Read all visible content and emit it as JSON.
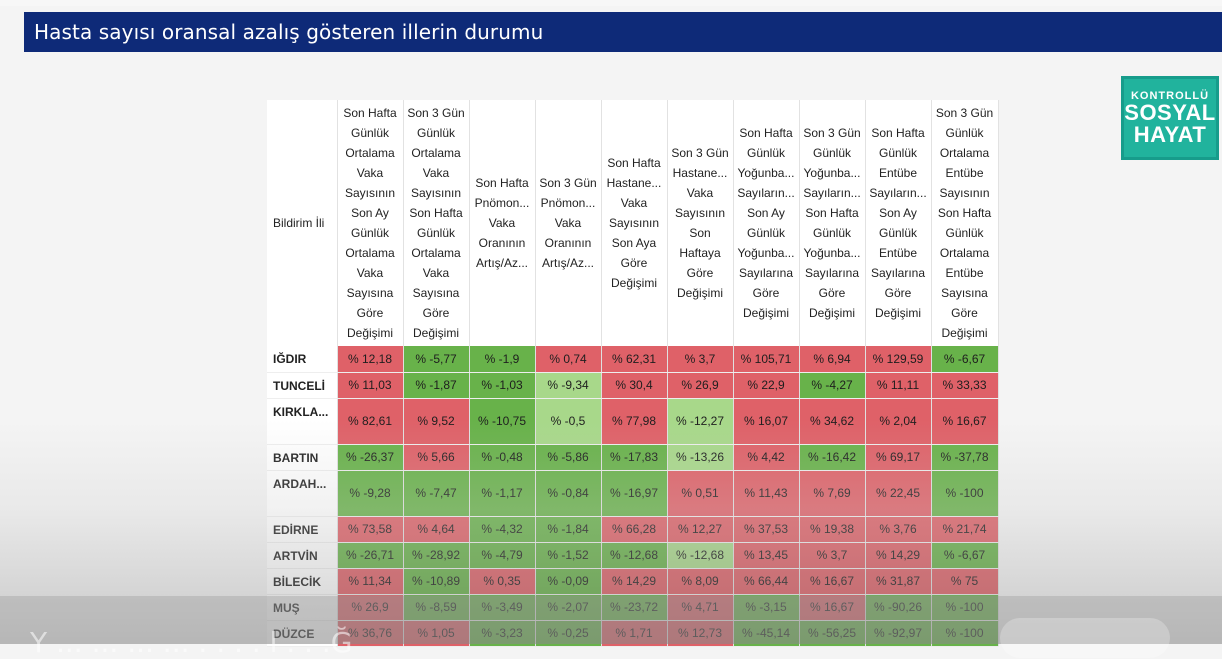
{
  "title": "Hasta sayısı oransal azalış gösteren illerin durumu",
  "logo": {
    "top": "KONTROLLÜ",
    "mid": "SOSYAL",
    "bottom": "HAYAT"
  },
  "colors": {
    "title_bg": "#0e2a78",
    "red": "#df6168",
    "green": "#68b24a",
    "light_green": "#a8d88a",
    "logo": "#21b39d"
  },
  "ghost_text": "Y ... ... ... ... . . . . l . . .Ğ",
  "table": {
    "corner_header": "Bildirim İli",
    "headers": [
      [
        "Son Hafta",
        "Günlük",
        "Ortalama",
        "Vaka",
        "Sayısının",
        "Son Ay",
        "Günlük",
        "Ortalama",
        "Vaka",
        "Sayısına",
        "Göre",
        "Değişimi"
      ],
      [
        "Son 3 Gün",
        "Günlük",
        "Ortalama",
        "Vaka",
        "Sayısının",
        "Son Hafta",
        "Günlük",
        "Ortalama",
        "Vaka",
        "Sayısına",
        "Göre",
        "Değişimi"
      ],
      [
        "Son Hafta",
        "Pnömon...",
        "Vaka",
        "Oranının",
        "Artış/Az..."
      ],
      [
        "Son 3 Gün",
        "Pnömon...",
        "Vaka",
        "Oranının",
        "Artış/Az..."
      ],
      [
        "Son Hafta",
        "Hastane...",
        "Vaka",
        "Sayısının",
        "Son Aya",
        "Göre",
        "Değişimi"
      ],
      [
        "Son 3 Gün",
        "Hastane...",
        "Vaka",
        "Sayısının",
        "Son",
        "Haftaya",
        "Göre",
        "Değişimi"
      ],
      [
        "Son Hafta",
        "Günlük",
        "Yoğunba...",
        "Sayıların...",
        "Son Ay",
        "Günlük",
        "Yoğunba...",
        "Sayılarına",
        "Göre",
        "Değişimi"
      ],
      [
        "Son 3 Gün",
        "Günlük",
        "Yoğunba...",
        "Sayıların...",
        "Son Hafta",
        "Günlük",
        "Yoğunba...",
        "Sayılarına",
        "Göre",
        "Değişimi"
      ],
      [
        "Son Hafta",
        "Günlük",
        "Entübe",
        "Sayıların...",
        "Son Ay",
        "Günlük",
        "Entübe",
        "Sayılarına",
        "Göre",
        "Değişimi"
      ],
      [
        "Son 3 Gün",
        "Günlük",
        "Ortalama",
        "Entübe",
        "Sayısının",
        "Son Hafta",
        "Günlük",
        "Ortalama",
        "Entübe",
        "Sayısına",
        "Göre",
        "Değişimi"
      ]
    ],
    "rows": [
      {
        "name": "IĞDIR",
        "cells": [
          [
            "% 12,18",
            "r"
          ],
          [
            "% -5,77",
            "g"
          ],
          [
            "% -1,9",
            "g"
          ],
          [
            "% 0,74",
            "r"
          ],
          [
            "% 62,31",
            "r"
          ],
          [
            "% 3,7",
            "r"
          ],
          [
            "% 105,71",
            "r"
          ],
          [
            "% 6,94",
            "r"
          ],
          [
            "% 129,59",
            "r"
          ],
          [
            "% -6,67",
            "g"
          ]
        ]
      },
      {
        "name": "TUNCELİ",
        "cells": [
          [
            "% 11,03",
            "r"
          ],
          [
            "% -1,87",
            "g"
          ],
          [
            "% -1,03",
            "g"
          ],
          [
            "% -9,34",
            "lg"
          ],
          [
            "% 30,4",
            "r"
          ],
          [
            "% 26,9",
            "r"
          ],
          [
            "% 22,9",
            "r"
          ],
          [
            "% -4,27",
            "g"
          ],
          [
            "% 11,11",
            "r"
          ],
          [
            "% 33,33",
            "r"
          ]
        ]
      },
      {
        "name": "KIRKLA...",
        "cells": [
          [
            "% 82,61",
            "r"
          ],
          [
            "% 9,52",
            "r"
          ],
          [
            "% -10,75",
            "g"
          ],
          [
            "% -0,5",
            "lg"
          ],
          [
            "% 77,98",
            "r"
          ],
          [
            "% -12,27",
            "lg"
          ],
          [
            "% 16,07",
            "r"
          ],
          [
            "% 34,62",
            "r"
          ],
          [
            "% 2,04",
            "r"
          ],
          [
            "% 16,67",
            "r"
          ]
        ]
      },
      {
        "name": "BARTIN",
        "cells": [
          [
            "% -26,37",
            "g"
          ],
          [
            "% 5,66",
            "r"
          ],
          [
            "% -0,48",
            "g"
          ],
          [
            "% -5,86",
            "g"
          ],
          [
            "% -17,83",
            "g"
          ],
          [
            "% -13,26",
            "lg"
          ],
          [
            "% 4,42",
            "r"
          ],
          [
            "% -16,42",
            "g"
          ],
          [
            "% 69,17",
            "r"
          ],
          [
            "% -37,78",
            "g"
          ]
        ]
      },
      {
        "name": "ARDAH...",
        "cells": [
          [
            "% -9,28",
            "g"
          ],
          [
            "% -7,47",
            "g"
          ],
          [
            "% -1,17",
            "g"
          ],
          [
            "% -0,84",
            "g"
          ],
          [
            "% -16,97",
            "g"
          ],
          [
            "% 0,51",
            "r"
          ],
          [
            "% 11,43",
            "r"
          ],
          [
            "% 7,69",
            "r"
          ],
          [
            "% 22,45",
            "r"
          ],
          [
            "% -100",
            "g"
          ]
        ]
      },
      {
        "name": "EDİRNE",
        "cells": [
          [
            "% 73,58",
            "r"
          ],
          [
            "% 4,64",
            "r"
          ],
          [
            "% -4,32",
            "g"
          ],
          [
            "% -1,84",
            "g"
          ],
          [
            "% 66,28",
            "r"
          ],
          [
            "% 12,27",
            "r"
          ],
          [
            "% 37,53",
            "r"
          ],
          [
            "% 19,38",
            "r"
          ],
          [
            "% 3,76",
            "r"
          ],
          [
            "% 21,74",
            "r"
          ]
        ]
      },
      {
        "name": "ARTVİN",
        "cells": [
          [
            "% -26,71",
            "g"
          ],
          [
            "% -28,92",
            "g"
          ],
          [
            "% -4,79",
            "g"
          ],
          [
            "% -1,52",
            "g"
          ],
          [
            "% -12,68",
            "g"
          ],
          [
            "% -12,68",
            "lg"
          ],
          [
            "% 13,45",
            "r"
          ],
          [
            "% 3,7",
            "r"
          ],
          [
            "% 14,29",
            "r"
          ],
          [
            "% -6,67",
            "g"
          ]
        ]
      },
      {
        "name": "BİLECİK",
        "cells": [
          [
            "% 11,34",
            "r"
          ],
          [
            "% -10,89",
            "g"
          ],
          [
            "% 0,35",
            "r"
          ],
          [
            "% -0,09",
            "g"
          ],
          [
            "% 14,29",
            "r"
          ],
          [
            "% 8,09",
            "r"
          ],
          [
            "% 66,44",
            "r"
          ],
          [
            "% 16,67",
            "r"
          ],
          [
            "% 31,87",
            "r"
          ],
          [
            "% 75",
            "r"
          ]
        ]
      },
      {
        "name": "MUŞ",
        "cells": [
          [
            "% 26,9",
            "r"
          ],
          [
            "% -8,59",
            "g"
          ],
          [
            "% -3,49",
            "g"
          ],
          [
            "% -2,07",
            "g"
          ],
          [
            "% -23,72",
            "g"
          ],
          [
            "% 4,71",
            "r"
          ],
          [
            "% -3,15",
            "g"
          ],
          [
            "% 16,67",
            "r"
          ],
          [
            "% -90,26",
            "g"
          ],
          [
            "% -100",
            "g"
          ]
        ]
      },
      {
        "name": "DÜZCE",
        "cells": [
          [
            "% 36,76",
            "r"
          ],
          [
            "% 1,05",
            "r"
          ],
          [
            "% -3,23",
            "g"
          ],
          [
            "% -0,25",
            "g"
          ],
          [
            "% 1,71",
            "r"
          ],
          [
            "% 12,73",
            "r"
          ],
          [
            "% -45,14",
            "g"
          ],
          [
            "% -56,25",
            "g"
          ],
          [
            "% -92,97",
            "g"
          ],
          [
            "% -100",
            "g"
          ]
        ]
      }
    ]
  }
}
